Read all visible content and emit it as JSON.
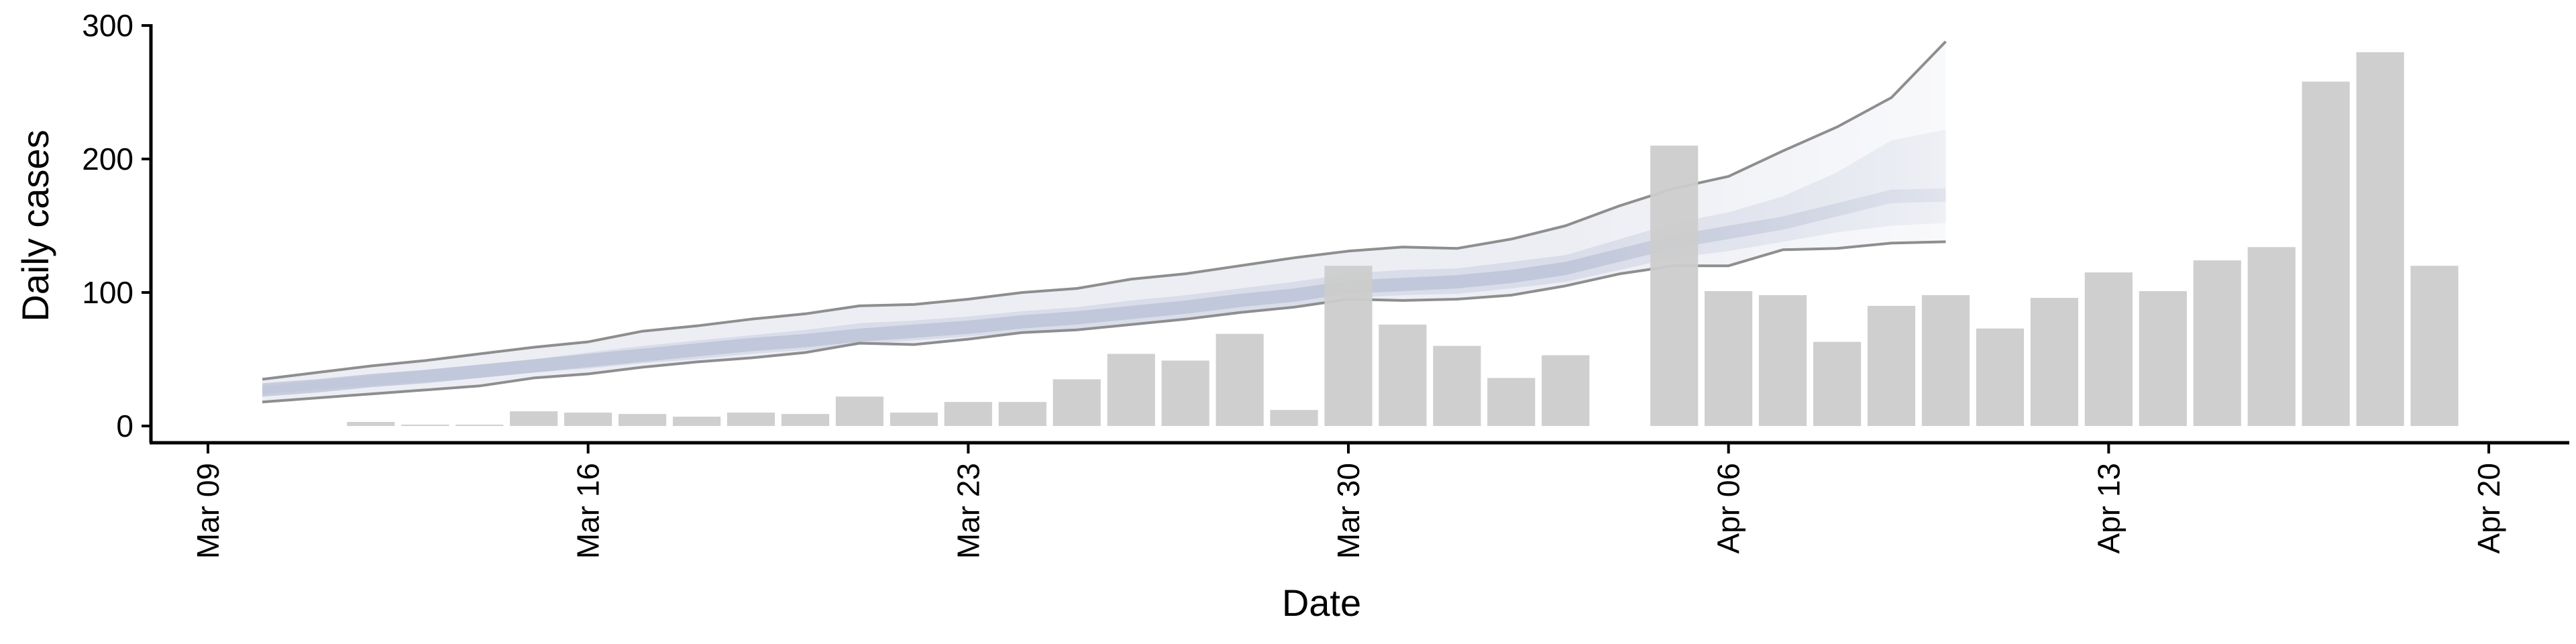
{
  "chart_data": {
    "type": "bar",
    "xlabel": "Date",
    "ylabel": "Daily cases",
    "xlim": [
      "2020-03-09",
      "2020-04-20"
    ],
    "ylim": [
      0,
      300
    ],
    "grid": false,
    "x_ticks": [
      {
        "date": "2020-03-09",
        "label": "Mar 09"
      },
      {
        "date": "2020-03-16",
        "label": "Mar 16"
      },
      {
        "date": "2020-03-23",
        "label": "Mar 23"
      },
      {
        "date": "2020-03-30",
        "label": "Mar 30"
      },
      {
        "date": "2020-04-06",
        "label": "Apr 06"
      },
      {
        "date": "2020-04-13",
        "label": "Apr 13"
      },
      {
        "date": "2020-04-20",
        "label": "Apr 20"
      }
    ],
    "y_ticks": [
      0,
      100,
      200,
      300
    ],
    "colors": {
      "bars": "#cccccc",
      "band_outer": "#e9ebf2",
      "band_mid": "#d6dae7",
      "band_inner": "#b8bfd5",
      "bound_lines": "#888888"
    },
    "bars": [
      {
        "date": "2020-03-12",
        "value": 3
      },
      {
        "date": "2020-03-13",
        "value": 1
      },
      {
        "date": "2020-03-14",
        "value": 1
      },
      {
        "date": "2020-03-15",
        "value": 11
      },
      {
        "date": "2020-03-16",
        "value": 10
      },
      {
        "date": "2020-03-17",
        "value": 9
      },
      {
        "date": "2020-03-18",
        "value": 7
      },
      {
        "date": "2020-03-19",
        "value": 10
      },
      {
        "date": "2020-03-20",
        "value": 9
      },
      {
        "date": "2020-03-21",
        "value": 22
      },
      {
        "date": "2020-03-22",
        "value": 10
      },
      {
        "date": "2020-03-23",
        "value": 18
      },
      {
        "date": "2020-03-24",
        "value": 18
      },
      {
        "date": "2020-03-25",
        "value": 35
      },
      {
        "date": "2020-03-26",
        "value": 54
      },
      {
        "date": "2020-03-27",
        "value": 49
      },
      {
        "date": "2020-03-28",
        "value": 69
      },
      {
        "date": "2020-03-29",
        "value": 12
      },
      {
        "date": "2020-03-30",
        "value": 120
      },
      {
        "date": "2020-03-31",
        "value": 76
      },
      {
        "date": "2020-04-01",
        "value": 60
      },
      {
        "date": "2020-04-02",
        "value": 36
      },
      {
        "date": "2020-04-03",
        "value": 53
      },
      {
        "date": "2020-04-05",
        "value": 210
      },
      {
        "date": "2020-04-06",
        "value": 101
      },
      {
        "date": "2020-04-07",
        "value": 98
      },
      {
        "date": "2020-04-08",
        "value": 63
      },
      {
        "date": "2020-04-09",
        "value": 90
      },
      {
        "date": "2020-04-10",
        "value": 98
      },
      {
        "date": "2020-04-11",
        "value": 73
      },
      {
        "date": "2020-04-12",
        "value": 96
      },
      {
        "date": "2020-04-13",
        "value": 115
      },
      {
        "date": "2020-04-14",
        "value": 101
      },
      {
        "date": "2020-04-15",
        "value": 124
      },
      {
        "date": "2020-04-16",
        "value": 134
      },
      {
        "date": "2020-04-17",
        "value": 258
      },
      {
        "date": "2020-04-18",
        "value": 280
      },
      {
        "date": "2020-04-19",
        "value": 120
      }
    ],
    "estimate": {
      "dates": [
        "2020-03-10",
        "2020-03-11",
        "2020-03-12",
        "2020-03-13",
        "2020-03-14",
        "2020-03-15",
        "2020-03-16",
        "2020-03-17",
        "2020-03-18",
        "2020-03-19",
        "2020-03-20",
        "2020-03-21",
        "2020-03-22",
        "2020-03-23",
        "2020-03-24",
        "2020-03-25",
        "2020-03-26",
        "2020-03-27",
        "2020-03-28",
        "2020-03-29",
        "2020-03-30",
        "2020-03-31",
        "2020-04-01",
        "2020-04-02",
        "2020-04-03",
        "2020-04-04",
        "2020-04-05",
        "2020-04-06",
        "2020-04-07",
        "2020-04-08",
        "2020-04-09",
        "2020-04-10"
      ],
      "upper_90": [
        35,
        40,
        45,
        49,
        54,
        59,
        63,
        71,
        75,
        80,
        84,
        90,
        91,
        95,
        100,
        103,
        110,
        114,
        120,
        126,
        131,
        134,
        133,
        140,
        150,
        165,
        178,
        187,
        206,
        224,
        246,
        288
      ],
      "upper_50": [
        30,
        34,
        38,
        42,
        46,
        50,
        55,
        60,
        64,
        68,
        72,
        77,
        79,
        82,
        86,
        89,
        94,
        98,
        103,
        108,
        114,
        117,
        118,
        123,
        128,
        140,
        152,
        160,
        172,
        190,
        214,
        222
      ],
      "median": [
        27,
        30,
        34,
        37,
        41,
        45,
        49,
        53,
        57,
        61,
        64,
        68,
        71,
        74,
        78,
        81,
        85,
        89,
        94,
        98,
        104,
        106,
        108,
        112,
        118,
        128,
        138,
        145,
        152,
        162,
        172,
        173
      ],
      "lower_50": [
        24,
        27,
        30,
        33,
        36,
        40,
        43,
        47,
        50,
        54,
        57,
        61,
        64,
        67,
        70,
        73,
        77,
        81,
        86,
        90,
        96,
        98,
        99,
        103,
        108,
        117,
        126,
        131,
        138,
        145,
        150,
        152
      ],
      "lower_90": [
        18,
        21,
        24,
        27,
        30,
        36,
        39,
        44,
        48,
        51,
        55,
        62,
        61,
        65,
        70,
        72,
        76,
        80,
        85,
        89,
        95,
        94,
        95,
        98,
        105,
        114,
        120,
        120,
        132,
        133,
        137,
        138
      ]
    }
  }
}
